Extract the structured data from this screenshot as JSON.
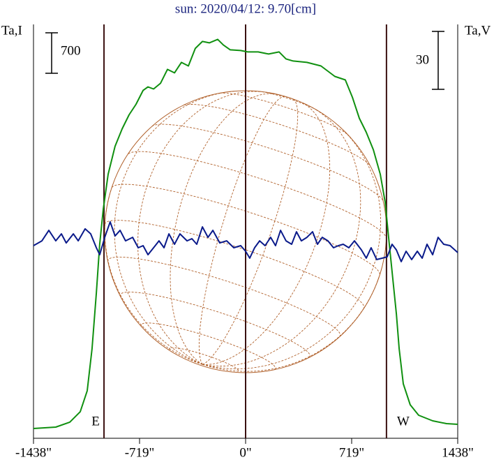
{
  "chart_data": {
    "type": "line",
    "title": "sun: 2020/04/12: 9.70[cm]",
    "ylabel": "Ta,I",
    "y2label": "Ta,V",
    "xlim": [
      -1438,
      1438
    ],
    "xticks": [
      {
        "value": -1438,
        "label": "-1438\""
      },
      {
        "value": -719,
        "label": "-719\""
      },
      {
        "value": 0,
        "label": "0\""
      },
      {
        "value": 719,
        "label": "719\""
      },
      {
        "value": 1438,
        "label": "1438\""
      }
    ],
    "ylim": [
      0,
      7150
    ],
    "y2lim": [
      -98.7,
      115.7
    ],
    "scale_bars": {
      "y": 700,
      "y2": 30
    },
    "vlines": [
      {
        "value": -960,
        "label": "E"
      },
      {
        "value": 0
      },
      {
        "value": 955,
        "label": "W"
      }
    ],
    "series": [
      {
        "name": "I",
        "color": "#109010",
        "x": [
          -1438,
          -1287,
          -1192,
          -1121,
          -1074,
          -1041,
          -1012,
          -989,
          -965,
          -932,
          -885,
          -837,
          -790,
          -743,
          -695,
          -662,
          -624,
          -577,
          -530,
          -482,
          -435,
          -388,
          -341,
          -293,
          -246,
          -189,
          -151,
          -104,
          -33,
          14,
          85,
          156,
          227,
          274,
          322,
          416,
          511,
          605,
          676,
          724,
          771,
          818,
          866,
          913,
          946,
          974,
          998,
          1022,
          1041,
          1069,
          1116,
          1173,
          1268,
          1362,
          1438
        ],
        "values": [
          169,
          193,
          278,
          459,
          821,
          1545,
          2511,
          3355,
          3959,
          4562,
          5045,
          5347,
          5588,
          5769,
          6011,
          6071,
          6035,
          6132,
          6373,
          6313,
          6494,
          6433,
          6735,
          6856,
          6832,
          6892,
          6795,
          6711,
          6699,
          6675,
          6675,
          6639,
          6675,
          6554,
          6518,
          6494,
          6433,
          6252,
          6192,
          5890,
          5528,
          5287,
          4985,
          4562,
          4080,
          3355,
          2752,
          2148,
          1545,
          941,
          579,
          398,
          302,
          253,
          241
        ]
      },
      {
        "name": "V",
        "color": "#0a1a8a",
        "axis": "y2",
        "x": [
          -1438,
          -1381,
          -1334,
          -1287,
          -1249,
          -1216,
          -1168,
          -1135,
          -1088,
          -1050,
          -1012,
          -989,
          -955,
          -918,
          -885,
          -851,
          -814,
          -766,
          -728,
          -695,
          -662,
          -624,
          -587,
          -553,
          -520,
          -482,
          -445,
          -397,
          -364,
          -331,
          -293,
          -255,
          -222,
          -175,
          -128,
          -80,
          -33,
          0,
          28,
          61,
          95,
          132,
          170,
          203,
          237,
          274,
          312,
          345,
          378,
          416,
          454,
          487,
          520,
          558,
          596,
          629,
          662,
          700,
          738,
          785,
          818,
          851,
          889,
          927,
          960,
          993,
          1022,
          1055,
          1088,
          1126,
          1164,
          1197,
          1230,
          1268,
          1305,
          1343,
          1386,
          1438
        ],
        "values": [
          1.1,
          3.6,
          9.0,
          3.6,
          7.2,
          2.5,
          7.2,
          3.6,
          9.8,
          7.2,
          0,
          -3.6,
          5.4,
          13.4,
          6.1,
          9.0,
          3.6,
          5.4,
          0,
          1.1,
          -3.6,
          0,
          3.6,
          0,
          7.2,
          1.8,
          7.2,
          3.6,
          4.7,
          1.8,
          10.8,
          5.4,
          9.0,
          2.5,
          3.6,
          0,
          1.1,
          -1.8,
          -5.4,
          0,
          3.6,
          1.1,
          5.4,
          1.1,
          9.0,
          3.6,
          1.8,
          8.3,
          3.6,
          5.4,
          8.3,
          1.8,
          5.4,
          3.6,
          0,
          1.1,
          1.8,
          0,
          3.6,
          -1.1,
          -5.4,
          0,
          -6.1,
          -5.4,
          -4.7,
          1.8,
          -1.1,
          -7.2,
          -1.8,
          -6.1,
          -1.8,
          -5.4,
          1.8,
          -3.6,
          5.4,
          1.8,
          1.1,
          -2.5
        ]
      }
    ]
  }
}
